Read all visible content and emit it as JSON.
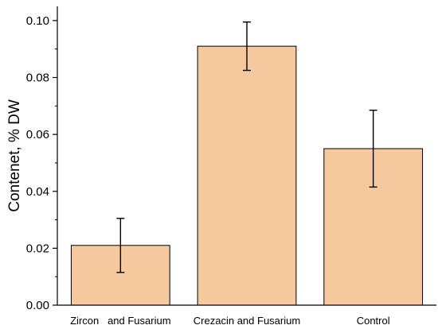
{
  "chart_data": {
    "type": "bar",
    "ylabel": "Contenet, % DW",
    "xlabel": "",
    "title": "",
    "categories": [
      "Zircon   and Fusarium",
      "Crezacin and Fusarium",
      "Control"
    ],
    "values": [
      0.021,
      0.091,
      0.055
    ],
    "errors": [
      0.0095,
      0.0085,
      0.0135
    ],
    "ylim": [
      0,
      0.105
    ],
    "yticks": [
      0.0,
      0.02,
      0.04,
      0.06,
      0.08,
      0.1
    ],
    "ytick_labels": [
      "0.00",
      "0.02",
      "0.04",
      "0.06",
      "0.08",
      "0.10"
    ],
    "grid": false,
    "bar_color": "#f5c89e",
    "bar_edge_color": "#000000"
  }
}
